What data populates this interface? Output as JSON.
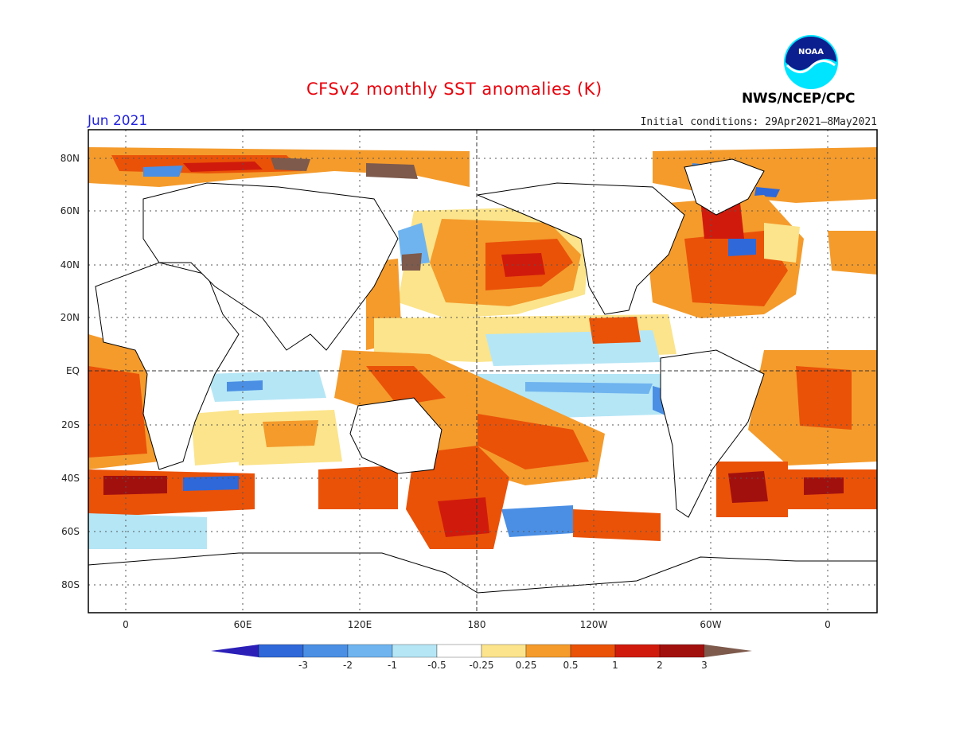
{
  "title": "CFSv2 monthly SST anomalies (K)",
  "agency": "NWS/NCEP/CPC",
  "logo_text": "NOAA",
  "month": "Jun 2021",
  "initial_conditions": "Initial conditions: 29Apr2021—8May2021",
  "lat_labels": [
    "80N",
    "60N",
    "40N",
    "20N",
    "EQ",
    "20S",
    "40S",
    "60S",
    "80S"
  ],
  "lon_labels": [
    "0",
    "60E",
    "120E",
    "180",
    "120W",
    "60W",
    "0"
  ],
  "colorbar": {
    "ticks": [
      "-3",
      "-2",
      "-1",
      "-0.5",
      "-0.25",
      "0.25",
      "0.5",
      "1",
      "2",
      "3"
    ],
    "colors": [
      "#2b1fb8",
      "#2f68d8",
      "#4a8fe4",
      "#6fb4ef",
      "#b5e6f6",
      "#ffffff",
      "#fbe48b",
      "#f49b2c",
      "#ea5208",
      "#d01b0c",
      "#a2100e",
      "#7d5a4c"
    ]
  },
  "colors": {
    "title": "#e8000b",
    "month": "#2222dd",
    "land": "#ffffff",
    "coast": "#000000"
  }
}
